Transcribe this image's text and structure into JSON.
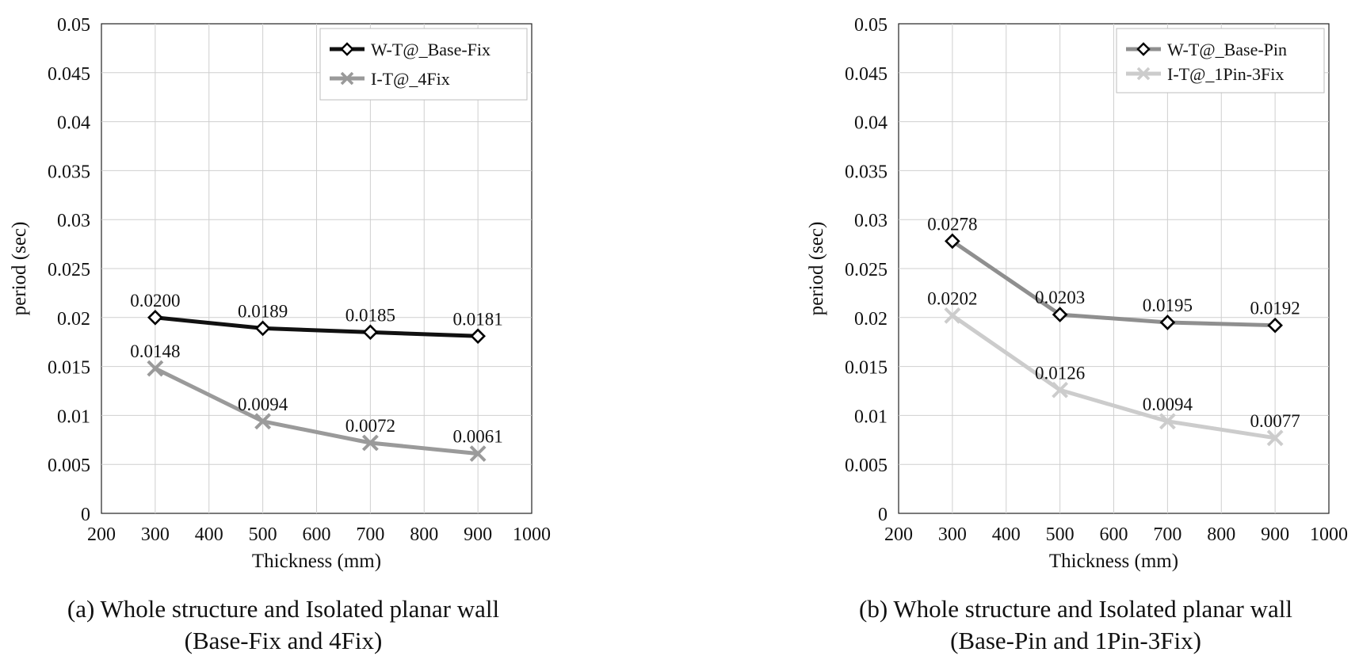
{
  "chart_data": [
    {
      "type": "line",
      "xlabel": "Thickness (mm)",
      "ylabel": "period (sec)",
      "xlim": [
        200,
        1000
      ],
      "ylim": [
        0,
        0.05
      ],
      "xticks": [
        "200",
        "300",
        "400",
        "500",
        "600",
        "700",
        "800",
        "900",
        "1000"
      ],
      "yticks": [
        "0",
        "0.005",
        "0.01",
        "0.015",
        "0.02",
        "0.025",
        "0.03",
        "0.035",
        "0.04",
        "0.045",
        "0.05"
      ],
      "grid": true,
      "legend_position": "top-right",
      "x": [
        300,
        500,
        700,
        900
      ],
      "series": [
        {
          "name": "W-T@_Base-Fix",
          "color": "#111111",
          "marker": "diamond",
          "values": [
            0.02,
            0.0189,
            0.0185,
            0.0181
          ],
          "labels": [
            "0.0200",
            "0.0189",
            "0.0185",
            "0.0181"
          ]
        },
        {
          "name": "I-T@_4Fix",
          "color": "#9a9a9a",
          "marker": "x",
          "values": [
            0.0148,
            0.0094,
            0.0072,
            0.0061
          ],
          "labels": [
            "0.0148",
            "0.0094",
            "0.0072",
            "0.0061"
          ]
        }
      ],
      "caption": [
        "(a) Whole structure and Isolated planar wall",
        "(Base-Fix and 4Fix)"
      ]
    },
    {
      "type": "line",
      "xlabel": "Thickness (mm)",
      "ylabel": "period (sec)",
      "xlim": [
        200,
        1000
      ],
      "ylim": [
        0,
        0.05
      ],
      "xticks": [
        "200",
        "300",
        "400",
        "500",
        "600",
        "700",
        "800",
        "900",
        "1000"
      ],
      "yticks": [
        "0",
        "0.005",
        "0.01",
        "0.015",
        "0.02",
        "0.025",
        "0.03",
        "0.035",
        "0.04",
        "0.045",
        "0.05"
      ],
      "grid": true,
      "legend_position": "top-right",
      "x": [
        300,
        500,
        700,
        900
      ],
      "series": [
        {
          "name": "W-T@_Base-Pin",
          "color": "#8f8f8f",
          "marker": "diamond",
          "values": [
            0.0278,
            0.0203,
            0.0195,
            0.0192
          ],
          "labels": [
            "0.0278",
            "0.0203",
            "0.0195",
            "0.0192"
          ]
        },
        {
          "name": "I-T@_1Pin-3Fix",
          "color": "#cccccc",
          "marker": "x",
          "values": [
            0.0202,
            0.0126,
            0.0094,
            0.0077
          ],
          "labels": [
            "0.0202",
            "0.0126",
            "0.0094",
            "0.0077"
          ]
        }
      ],
      "caption": [
        "(b) Whole structure and Isolated planar wall",
        "(Base-Pin and 1Pin-3Fix)"
      ]
    }
  ]
}
